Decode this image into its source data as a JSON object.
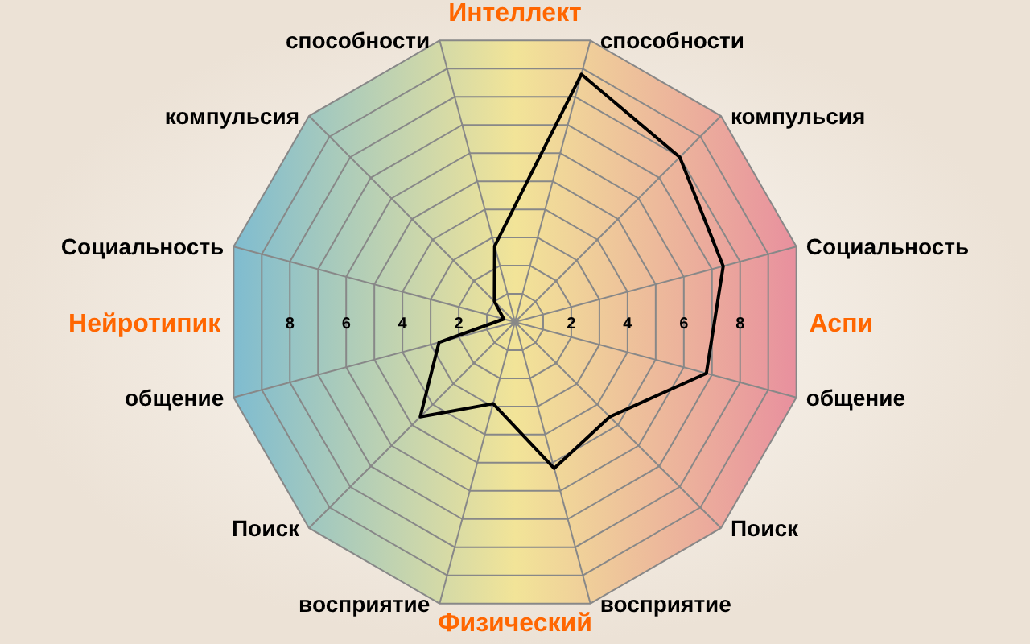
{
  "chart_data": {
    "type": "radar",
    "categories": [
      "способности",
      "компульсия",
      "Социальность",
      "общение",
      "Поиск",
      "восприятие",
      "восприятие",
      "Поиск",
      "общение",
      "Социальность",
      "компульсия",
      "способности"
    ],
    "series": [
      {
        "color": "#000000",
        "values": [
          8.8,
          8.0,
          7.4,
          6.8,
          4.6,
          5.2,
          2.9,
          4.6,
          2.7,
          0.4,
          1.0,
          2.7
        ]
      }
    ],
    "ylim": [
      0,
      10
    ],
    "yticks": [
      2,
      4,
      6,
      8
    ],
    "grid": true,
    "marker": "none",
    "line_style": "solid",
    "annotations": [
      "Интеллект",
      "Аспи",
      "Физический",
      "Нейротипик",
      "2",
      "4",
      "6",
      "8"
    ]
  }
}
